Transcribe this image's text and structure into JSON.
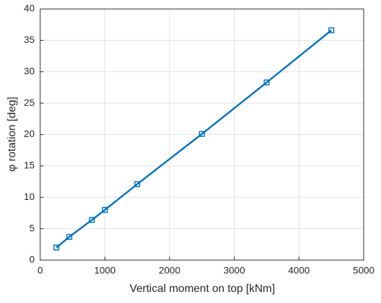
{
  "chart_data": {
    "type": "line",
    "xlabel": "Vertical moment on top [kNm]",
    "ylabel": "φ rotation [deg]",
    "x": [
      250,
      450,
      800,
      1000,
      1500,
      2500,
      3500,
      4500
    ],
    "values": [
      2.0,
      3.7,
      6.4,
      8.0,
      12.1,
      20.1,
      28.3,
      36.6
    ],
    "color": "#0072bd",
    "marker": "square",
    "xlim": [
      0,
      5000
    ],
    "xticks": [
      0,
      1000,
      2000,
      3000,
      4000,
      5000
    ],
    "ylim": [
      0,
      40
    ],
    "yticks": [
      0,
      5,
      10,
      15,
      20,
      25,
      30,
      35,
      40
    ],
    "grid": true
  }
}
